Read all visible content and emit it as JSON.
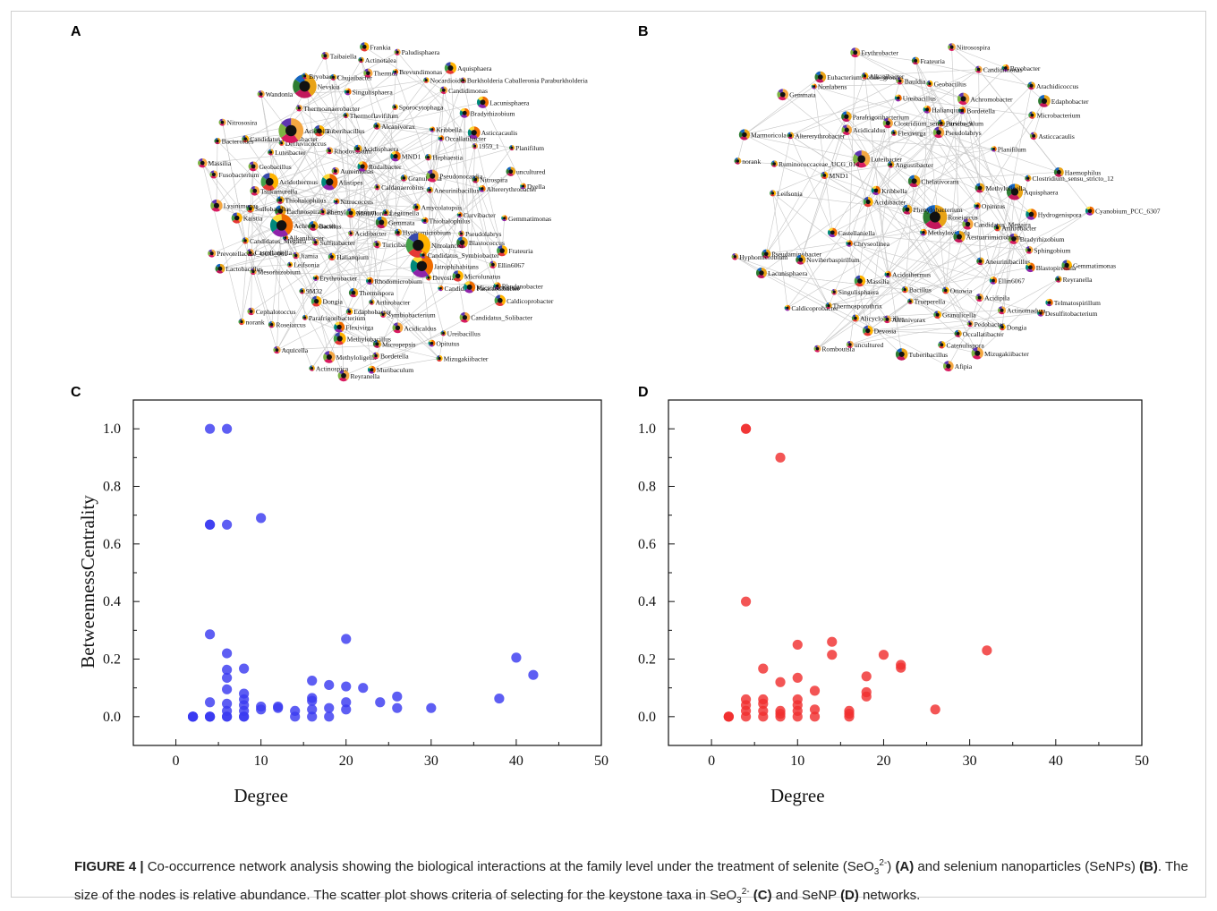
{
  "figure_label": "FIGURE 4 |",
  "caption_segments": [
    {
      "text": " Co-occurrence network analysis showing the biological interactions at the family level under the treatment of selenite (SeO",
      "bold": false
    },
    {
      "text": "3",
      "sub": true
    },
    {
      "text": "2-",
      "sup": true
    },
    {
      "text": ") ",
      "bold": false
    },
    {
      "text": "(A)",
      "bold": true
    },
    {
      "text": " and selenium nanoparticles (SeNPs) ",
      "bold": false
    },
    {
      "text": "(B)",
      "bold": true
    },
    {
      "text": ". The size of the nodes is relative abundance. The scatter plot shows criteria of selecting for the keystone taxa in SeO",
      "bold": false
    },
    {
      "text": "3",
      "sub": true
    },
    {
      "text": "2-",
      "sup": true
    },
    {
      "text": " ",
      "bold": false
    },
    {
      "text": "(C)",
      "bold": true
    },
    {
      "text": " and SeNP ",
      "bold": false
    },
    {
      "text": "(D)",
      "bold": true
    },
    {
      "text": " networks.",
      "bold": false
    }
  ],
  "panel_letters": [
    "A",
    "B",
    "C",
    "D"
  ],
  "network_A": {
    "nodes": [
      "Kaistia",
      "Jatrophihabitans",
      "Castellaniella",
      "Rhodanobacter",
      "Luteibacter",
      "Methyloligella",
      "Aureimonas",
      "Lachnospiraceae",
      "Rhodovastum",
      "Geobacillus",
      "Turicibacter",
      "Planifilum",
      "Candidatus Paracaedibacter",
      "Aneurinibacillus",
      "Mesorhizobium",
      "Tuberibacillus",
      "Mizugakiibacter",
      "Alkanibacter",
      "Acidothermus",
      "Ureibacillus",
      "9M32",
      "Muribaculum",
      "Achromobacter",
      "Thermus",
      "Bacillus",
      "Blastococcus",
      "Nevskia",
      "Lactobacillus",
      "Thermispora",
      "Acidisphaera",
      "Burkholderia Caballeronia Paraburkholderia",
      "Nitrococcus",
      "Dongia",
      "Symbiobacterium",
      "Bryobacter",
      "Reyranella",
      "Curvibacter",
      "Caldicoprobacter",
      "Prevotellaceae_UCG_001",
      "Candidatus_Solibacter",
      "Hephaestia",
      "Thiohalophilus",
      "Gemmata",
      "Fusobacterium",
      "MND1",
      "Phenylobacterium",
      "Flexivirga",
      "Arthrobacter",
      "Sulfitobacter",
      "Gemmatimonas",
      "Aquicella",
      "Chujaibacter",
      "Edaphobacter",
      "Hyphomicrobium",
      "Tsukamurella",
      "Thermoanaerobacter",
      "Asticcacaulis",
      "Occallatibacter",
      "Paludisphaera",
      "Massilia",
      "Wandonia",
      "Altererythrobacter",
      "Actinotalea",
      "Sulfobacillus",
      "Bradyrhizobium",
      "Acidicaldus",
      "Acidibacter",
      "Nitrospira",
      "Pseudolabrys",
      "Bordetella",
      "Nitrolancea",
      "Ellin6067",
      "Granulicella",
      "Jiamia",
      "Caldanaerobius",
      "Erythrobacter",
      "Singulisphaera",
      "Micropepsis",
      "Lacunisphaera",
      "norank",
      "Sporocytophaga",
      "Nitrososira",
      "1959_1",
      "Brevundimonas",
      "Methylobacillus",
      "Nocardioides",
      "Defluviicoccus",
      "Frankia",
      "Candidatus Ovatusbacter",
      "Methylorella",
      "uncultured",
      "Aquisphaera",
      "Candidimonas",
      "Bacteroides",
      "Alistipes",
      "Actinospica",
      "Devosia",
      "Candidatus_Megaira",
      "Roseiarcus",
      "Alcanivorax",
      "Rudaibacter",
      "Leifsonia",
      "Thermoflavifilum",
      "Pseudonocardia",
      "Kribbella",
      "Cephalotoccus",
      "Opitutus",
      "Thiohalophilus",
      "Acidipila",
      "Legionella",
      "Microlunatus",
      "Lysinimonas",
      "Rhodomicrobium",
      "Frateuria",
      "Amycolatopsis",
      "Halianqium",
      "Parafrigoribacterium",
      "Taibaiella",
      "Microbacterium",
      "Dyella",
      "Candidatus_Symbiobacter"
    ]
  },
  "network_B": {
    "nodes": [
      "Pseudaminobacter",
      "Granulicella",
      "Methylovirgula",
      "Geobacillus",
      "Arachidicoccus",
      "Acidothermus",
      "Lacunisphaera",
      "Devosia",
      "uncultured",
      "Ureibacillus",
      "Bordetella",
      "Acidibacter",
      "Roseiarcus",
      "Nitrosospira",
      "Alicyclobacillus",
      "Eubacterium_tenue_group",
      "Leifsonia",
      "Aquisphaera",
      "Methyloligella",
      "Singulisphaera",
      "Bryobacter",
      "Gemmata",
      "Tuberibacillus",
      "Candidimonas",
      "Parafrigoribacterium",
      "norank",
      "Reyranella",
      "Pseudolabrys",
      "Gemmatimonas",
      "Caldicoprobacter",
      "Desulfitobacterium",
      "Microbacterium",
      "Flexivirga",
      "Bradyrhizobium",
      "Ellin6067",
      "Occallatibacter",
      "Romboutsia",
      "Sphingobium",
      "Edaphobacter",
      "Erythrobacter",
      "Trueperella",
      "Luteibacter",
      "Marmoricola",
      "Halianqium",
      "Altererythrobacter",
      "Chelativorans",
      "Acidicaldus",
      "Afipia",
      "Dongia",
      "Mizugakiibacter",
      "Kribbella",
      "Chryseolinea",
      "Arthrobacter",
      "Bauldia",
      "Phenylobacterium",
      "MND1",
      "Alkanibacter",
      "Actinomadura",
      "Parvibaculum",
      "Asticcacaulis",
      "Acidipila",
      "Opitutus",
      "Alcanivorax",
      "Ruminococcaceae_UCG_014",
      "Massilia",
      "Achromobacter",
      "Ottowia",
      "Noviherbaspirillum",
      "Castellaniella",
      "Catenulispora",
      "Hyphomicrobium",
      "Aneurinibacillus",
      "Blastopirellula",
      "Frateuria",
      "Clostridium_sensu_stricto_9",
      "Nonlabens",
      "Thermosporothrix",
      "Telmatospirillum",
      "Hydrogenispora",
      "Clostridium_sensu_stricto_12",
      "Bacillus",
      "Haemophilus",
      "Planifilum",
      "Candidatus_Megaira",
      "Cyanobium_PCC_6307",
      "Aestuariimicrobium",
      "Angustibacter",
      "Pedobacter"
    ]
  },
  "chart_data": [
    {
      "panel": "C",
      "type": "scatter",
      "xlabel": "Degree",
      "ylabel": "BetweennessCentrality",
      "xlim": [
        -5,
        50
      ],
      "ylim": [
        -0.1,
        1.1
      ],
      "xticks": [
        "0",
        "10",
        "20",
        "30",
        "40",
        "50"
      ],
      "yticks": [
        "0.0",
        "0.2",
        "0.4",
        "0.6",
        "0.8",
        "1.0"
      ],
      "color": "#3b3bf0",
      "points": [
        [
          2,
          0
        ],
        [
          2,
          0
        ],
        [
          2,
          0
        ],
        [
          2,
          0
        ],
        [
          4,
          0
        ],
        [
          4,
          0
        ],
        [
          4,
          0
        ],
        [
          4,
          1.0
        ],
        [
          4,
          0.667
        ],
        [
          4,
          0.667
        ],
        [
          4,
          0.286
        ],
        [
          4,
          0.05
        ],
        [
          6,
          1.0
        ],
        [
          6,
          0.667
        ],
        [
          6,
          0.22
        ],
        [
          6,
          0.163
        ],
        [
          6,
          0.135
        ],
        [
          6,
          0.095
        ],
        [
          6,
          0.045
        ],
        [
          6,
          0.02
        ],
        [
          6,
          0
        ],
        [
          6,
          0
        ],
        [
          8,
          0.167
        ],
        [
          8,
          0.08
        ],
        [
          8,
          0.06
        ],
        [
          8,
          0.04
        ],
        [
          8,
          0.02
        ],
        [
          8,
          0
        ],
        [
          8,
          0
        ],
        [
          10,
          0.69
        ],
        [
          10,
          0.035
        ],
        [
          10,
          0.025
        ],
        [
          12,
          0.035
        ],
        [
          12,
          0.03
        ],
        [
          14,
          0.02
        ],
        [
          14,
          0
        ],
        [
          16,
          0.125
        ],
        [
          16,
          0.065
        ],
        [
          16,
          0.055
        ],
        [
          16,
          0.025
        ],
        [
          16,
          0
        ],
        [
          18,
          0.11
        ],
        [
          18,
          0.03
        ],
        [
          18,
          0
        ],
        [
          20,
          0.27
        ],
        [
          20,
          0.105
        ],
        [
          20,
          0.05
        ],
        [
          20,
          0.025
        ],
        [
          22,
          0.1
        ],
        [
          24,
          0.05
        ],
        [
          26,
          0.07
        ],
        [
          26,
          0.03
        ],
        [
          30,
          0.03
        ],
        [
          38,
          0.063
        ],
        [
          40,
          0.205
        ],
        [
          42,
          0.145
        ]
      ]
    },
    {
      "panel": "D",
      "type": "scatter",
      "xlabel": "Degree",
      "ylabel": "",
      "xlim": [
        -5,
        50
      ],
      "ylim": [
        -0.1,
        1.1
      ],
      "xticks": [
        "0",
        "10",
        "20",
        "30",
        "40",
        "50"
      ],
      "yticks": [
        "0.0",
        "0.2",
        "0.4",
        "0.6",
        "0.8",
        "1.0"
      ],
      "color": "#f03030",
      "points": [
        [
          2,
          0
        ],
        [
          2,
          0
        ],
        [
          2,
          0
        ],
        [
          4,
          1.0
        ],
        [
          4,
          1.0
        ],
        [
          4,
          0.4
        ],
        [
          4,
          0.06
        ],
        [
          4,
          0.04
        ],
        [
          4,
          0.02
        ],
        [
          4,
          0
        ],
        [
          6,
          0.167
        ],
        [
          6,
          0.06
        ],
        [
          6,
          0.045
        ],
        [
          6,
          0.02
        ],
        [
          6,
          0
        ],
        [
          8,
          0.9
        ],
        [
          8,
          0.12
        ],
        [
          8,
          0.02
        ],
        [
          8,
          0.01
        ],
        [
          8,
          0
        ],
        [
          10,
          0.25
        ],
        [
          10,
          0.135
        ],
        [
          10,
          0.06
        ],
        [
          10,
          0.04
        ],
        [
          10,
          0.02
        ],
        [
          10,
          0
        ],
        [
          12,
          0.09
        ],
        [
          12,
          0.025
        ],
        [
          12,
          0
        ],
        [
          14,
          0.26
        ],
        [
          14,
          0.215
        ],
        [
          16,
          0.02
        ],
        [
          16,
          0.01
        ],
        [
          16,
          0
        ],
        [
          18,
          0.14
        ],
        [
          18,
          0.085
        ],
        [
          18,
          0.07
        ],
        [
          20,
          0.215
        ],
        [
          22,
          0.18
        ],
        [
          22,
          0.17
        ],
        [
          26,
          0.025
        ],
        [
          32,
          0.23
        ]
      ]
    }
  ]
}
